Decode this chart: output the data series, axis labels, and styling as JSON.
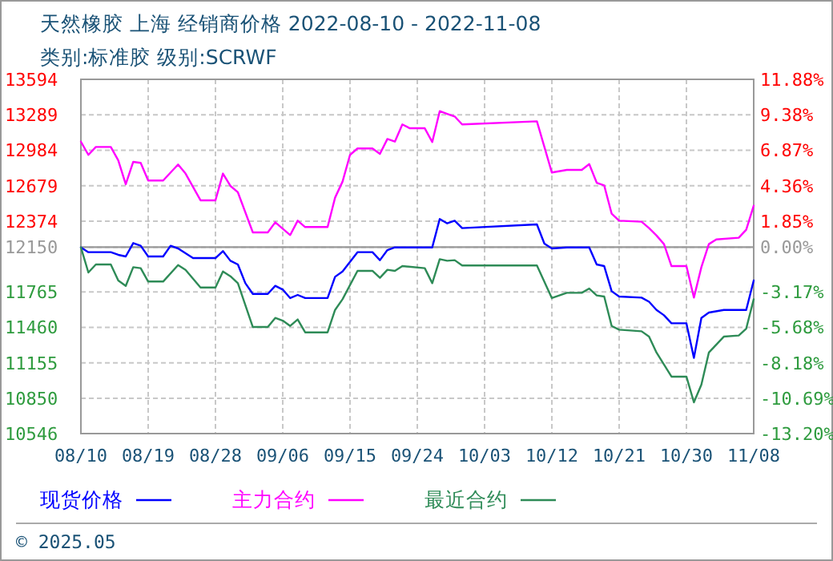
{
  "chart_data": {
    "type": "line",
    "title": "天然橡胶 上海 经销商价格 2022-08-10 - 2022-11-08",
    "subtitle": "类别:标准胶 级别:SCRWF",
    "xlim": [
      "2022-08-10",
      "2022-11-08"
    ],
    "xticks": [
      {
        "value": "2022-08-10",
        "label": "08/10"
      },
      {
        "value": "2022-08-19",
        "label": "08/19"
      },
      {
        "value": "2022-08-28",
        "label": "08/28"
      },
      {
        "value": "2022-09-06",
        "label": "09/06"
      },
      {
        "value": "2022-09-15",
        "label": "09/15"
      },
      {
        "value": "2022-09-24",
        "label": "09/24"
      },
      {
        "value": "2022-10-03",
        "label": "10/03"
      },
      {
        "value": "2022-10-12",
        "label": "10/12"
      },
      {
        "value": "2022-10-21",
        "label": "10/21"
      },
      {
        "value": "2022-10-30",
        "label": "10/30"
      },
      {
        "value": "2022-11-08",
        "label": "11/08"
      }
    ],
    "ylim": [
      10546,
      13594
    ],
    "yticks": [
      13594,
      13289,
      12984,
      12679,
      12374,
      12150,
      11765,
      11460,
      11155,
      10850,
      10546
    ],
    "y2lim": [
      -13.2,
      11.88
    ],
    "y2ticks": [
      {
        "value": 11.88,
        "label": "11.88%"
      },
      {
        "value": 9.38,
        "label": "9.38%"
      },
      {
        "value": 6.87,
        "label": "6.87%"
      },
      {
        "value": 4.36,
        "label": "4.36%"
      },
      {
        "value": 1.85,
        "label": "1.85%"
      },
      {
        "value": 0,
        "label": "0.00%"
      },
      {
        "value": -3.17,
        "label": "-3.17%"
      },
      {
        "value": -5.68,
        "label": "-5.68%"
      },
      {
        "value": -8.18,
        "label": "-8.18%"
      },
      {
        "value": -10.69,
        "label": "-10.69%"
      },
      {
        "value": -13.2,
        "label": "-13.20%"
      }
    ],
    "grid": true,
    "legend": "bottom",
    "line_style": "solid",
    "ref_lines": [
      {
        "axis": "y",
        "value": 12150,
        "color": "#999999"
      }
    ],
    "series": [
      {
        "name": "现货价格",
        "color": "#0000ff",
        "x": [
          "2022-08-10",
          "2022-08-11",
          "2022-08-14",
          "2022-08-15",
          "2022-08-16",
          "2022-08-17",
          "2022-08-18",
          "2022-08-19",
          "2022-08-21",
          "2022-08-22",
          "2022-08-23",
          "2022-08-25",
          "2022-08-28",
          "2022-08-29",
          "2022-08-30",
          "2022-08-31",
          "2022-09-01",
          "2022-09-02",
          "2022-09-04",
          "2022-09-05",
          "2022-09-06",
          "2022-09-07",
          "2022-09-08",
          "2022-09-09",
          "2022-09-12",
          "2022-09-13",
          "2022-09-14",
          "2022-09-16",
          "2022-09-18",
          "2022-09-19",
          "2022-09-20",
          "2022-09-21",
          "2022-09-26",
          "2022-09-27",
          "2022-09-28",
          "2022-09-29",
          "2022-09-30",
          "2022-10-10",
          "2022-10-11",
          "2022-10-12",
          "2022-10-14",
          "2022-10-17",
          "2022-10-18",
          "2022-10-19",
          "2022-10-20",
          "2022-10-21",
          "2022-10-24",
          "2022-10-25",
          "2022-10-26",
          "2022-10-27",
          "2022-10-28",
          "2022-10-30",
          "2022-10-31",
          "2022-11-01",
          "2022-11-02",
          "2022-11-04",
          "2022-11-07",
          "2022-11-08"
        ],
        "values": [
          12148,
          12107,
          12107,
          12084,
          12070,
          12185,
          12162,
          12070,
          12070,
          12162,
          12139,
          12056,
          12056,
          12116,
          12033,
          12001,
          11840,
          11748,
          11748,
          11817,
          11785,
          11712,
          11739,
          11712,
          11712,
          11895,
          11941,
          12107,
          12107,
          12038,
          12125,
          12148,
          12148,
          12392,
          12355,
          12378,
          12314,
          12346,
          12180,
          12139,
          12148,
          12148,
          12001,
          11987,
          11771,
          11725,
          11716,
          11680,
          11610,
          11564,
          11495,
          11495,
          11197,
          11541,
          11587,
          11610,
          11610,
          11863
        ]
      },
      {
        "name": "主力合约",
        "color": "#ff00ff",
        "x": [
          "2022-08-10",
          "2022-08-11",
          "2022-08-12",
          "2022-08-14",
          "2022-08-15",
          "2022-08-16",
          "2022-08-17",
          "2022-08-18",
          "2022-08-19",
          "2022-08-21",
          "2022-08-23",
          "2022-08-24",
          "2022-08-26",
          "2022-08-28",
          "2022-08-29",
          "2022-08-30",
          "2022-08-31",
          "2022-09-02",
          "2022-09-04",
          "2022-09-05",
          "2022-09-07",
          "2022-09-08",
          "2022-09-09",
          "2022-09-12",
          "2022-09-13",
          "2022-09-14",
          "2022-09-15",
          "2022-09-16",
          "2022-09-18",
          "2022-09-19",
          "2022-09-20",
          "2022-09-21",
          "2022-09-22",
          "2022-09-23",
          "2022-09-25",
          "2022-09-26",
          "2022-09-27",
          "2022-09-28",
          "2022-09-29",
          "2022-09-30",
          "2022-10-10",
          "2022-10-12",
          "2022-10-14",
          "2022-10-16",
          "2022-10-17",
          "2022-10-18",
          "2022-10-19",
          "2022-10-20",
          "2022-10-21",
          "2022-10-24",
          "2022-10-25",
          "2022-10-26",
          "2022-10-27",
          "2022-10-28",
          "2022-10-30",
          "2022-10-31",
          "2022-11-01",
          "2022-11-02",
          "2022-11-03",
          "2022-11-06",
          "2022-11-07",
          "2022-11-08"
        ],
        "values": [
          13058,
          12944,
          13012,
          13012,
          12897,
          12691,
          12884,
          12875,
          12723,
          12723,
          12861,
          12783,
          12553,
          12553,
          12783,
          12677,
          12622,
          12277,
          12277,
          12364,
          12254,
          12378,
          12323,
          12323,
          12576,
          12714,
          12944,
          12999,
          12999,
          12953,
          13081,
          13058,
          13206,
          13173,
          13173,
          13054,
          13320,
          13297,
          13275,
          13206,
          13233,
          12792,
          12815,
          12815,
          12865,
          12704,
          12681,
          12438,
          12378,
          12369,
          12314,
          12250,
          12176,
          11987,
          11987,
          11716,
          11978,
          12176,
          12217,
          12231,
          12300,
          12507
        ]
      },
      {
        "name": "最近合约",
        "color": "#2e8b57",
        "x": [
          "2022-08-10",
          "2022-08-11",
          "2022-08-12",
          "2022-08-14",
          "2022-08-15",
          "2022-08-16",
          "2022-08-17",
          "2022-08-18",
          "2022-08-19",
          "2022-08-21",
          "2022-08-23",
          "2022-08-24",
          "2022-08-26",
          "2022-08-28",
          "2022-08-29",
          "2022-08-30",
          "2022-08-31",
          "2022-09-02",
          "2022-09-04",
          "2022-09-05",
          "2022-09-06",
          "2022-09-07",
          "2022-09-08",
          "2022-09-09",
          "2022-09-12",
          "2022-09-13",
          "2022-09-14",
          "2022-09-16",
          "2022-09-18",
          "2022-09-19",
          "2022-09-20",
          "2022-09-21",
          "2022-09-22",
          "2022-09-25",
          "2022-09-26",
          "2022-09-27",
          "2022-09-28",
          "2022-09-29",
          "2022-09-30",
          "2022-10-10",
          "2022-10-12",
          "2022-10-14",
          "2022-10-16",
          "2022-10-17",
          "2022-10-18",
          "2022-10-19",
          "2022-10-20",
          "2022-10-21",
          "2022-10-24",
          "2022-10-25",
          "2022-10-26",
          "2022-10-28",
          "2022-10-30",
          "2022-10-31",
          "2022-11-01",
          "2022-11-02",
          "2022-11-04",
          "2022-11-06",
          "2022-11-07",
          "2022-11-08"
        ],
        "values": [
          12148,
          11932,
          12001,
          12001,
          11863,
          11817,
          11978,
          11969,
          11854,
          11854,
          11996,
          11955,
          11803,
          11803,
          11941,
          11900,
          11840,
          11463,
          11463,
          11541,
          11518,
          11472,
          11528,
          11417,
          11417,
          11610,
          11702,
          11946,
          11946,
          11886,
          11955,
          11946,
          11987,
          11969,
          11840,
          12047,
          12033,
          12038,
          11992,
          11992,
          11712,
          11757,
          11757,
          11794,
          11735,
          11725,
          11472,
          11440,
          11426,
          11380,
          11243,
          11036,
          11036,
          10815,
          10967,
          11243,
          11380,
          11390,
          11449,
          11702
        ]
      }
    ],
    "annotations": [
      "© 2025.05"
    ]
  }
}
